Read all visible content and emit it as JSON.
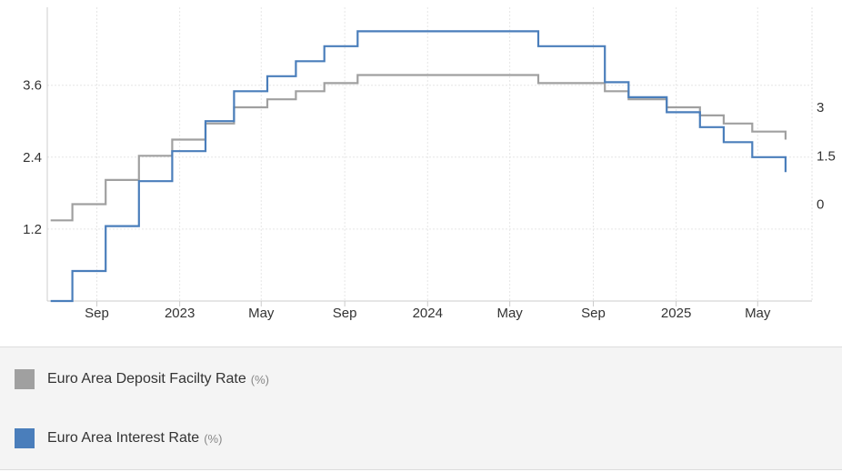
{
  "chart_data": {
    "type": "line",
    "x_tick_labels": [
      "Sep",
      "2023",
      "May",
      "Sep",
      "2024",
      "May",
      "Sep",
      "2025",
      "May"
    ],
    "x_ticks": [
      "2022-09-01",
      "2023-01-01",
      "2023-05-01",
      "2023-09-01",
      "2024-01-01",
      "2024-05-01",
      "2024-09-01",
      "2025-01-01",
      "2025-05-01"
    ],
    "xlim": [
      "2022-06-20",
      "2025-07-20"
    ],
    "left_axis": {
      "tick_labels": [
        "1.2",
        "2.4",
        "3.6"
      ],
      "ticks": [
        1.2,
        2.4,
        3.6
      ],
      "ylim": [
        0,
        4.9
      ]
    },
    "right_axis": {
      "tick_labels": [
        "0",
        "1.5",
        "3"
      ],
      "ticks": [
        0,
        1.5,
        3
      ],
      "ylim": [
        -3,
        6.1
      ]
    },
    "grid": true,
    "series": [
      {
        "name": "Euro Area Deposit Facilty Rate",
        "unit": "(%)",
        "color": "#a0a0a0",
        "axis": "right",
        "step_points": [
          [
            "2022-06-25",
            -0.5
          ],
          [
            "2022-07-27",
            0.0
          ],
          [
            "2022-09-14",
            0.75
          ],
          [
            "2022-11-02",
            1.5
          ],
          [
            "2022-12-21",
            2.0
          ],
          [
            "2023-02-08",
            2.5
          ],
          [
            "2023-03-22",
            3.0
          ],
          [
            "2023-05-10",
            3.25
          ],
          [
            "2023-06-21",
            3.5
          ],
          [
            "2023-08-02",
            3.75
          ],
          [
            "2023-09-20",
            4.0
          ],
          [
            "2024-06-12",
            3.75
          ],
          [
            "2024-09-18",
            3.5
          ],
          [
            "2024-10-23",
            3.25
          ],
          [
            "2024-12-18",
            3.0
          ],
          [
            "2025-02-05",
            2.75
          ],
          [
            "2025-03-12",
            2.5
          ],
          [
            "2025-04-23",
            2.25
          ],
          [
            "2025-06-11",
            2.0
          ]
        ],
        "end": "2025-06-11"
      },
      {
        "name": "Euro Area Interest Rate",
        "unit": "(%)",
        "color": "#4a7ebb",
        "axis": "left",
        "step_points": [
          [
            "2022-06-25",
            0.0
          ],
          [
            "2022-07-27",
            0.5
          ],
          [
            "2022-09-14",
            1.25
          ],
          [
            "2022-11-02",
            2.0
          ],
          [
            "2022-12-21",
            2.5
          ],
          [
            "2023-02-08",
            3.0
          ],
          [
            "2023-03-22",
            3.5
          ],
          [
            "2023-05-10",
            3.75
          ],
          [
            "2023-06-21",
            4.0
          ],
          [
            "2023-08-02",
            4.25
          ],
          [
            "2023-09-20",
            4.5
          ],
          [
            "2024-06-12",
            4.25
          ],
          [
            "2024-09-18",
            3.65
          ],
          [
            "2024-10-23",
            3.4
          ],
          [
            "2024-12-18",
            3.15
          ],
          [
            "2025-02-05",
            2.9
          ],
          [
            "2025-03-12",
            2.65
          ],
          [
            "2025-04-23",
            2.4
          ],
          [
            "2025-06-11",
            2.15
          ]
        ],
        "end": "2025-06-11"
      }
    ]
  },
  "legend": {
    "items": [
      {
        "label": "Euro Area Deposit Facilty Rate",
        "unit": "(%)",
        "color": "#a0a0a0"
      },
      {
        "label": "Euro Area Interest Rate",
        "unit": "(%)",
        "color": "#4a7ebb"
      }
    ]
  }
}
